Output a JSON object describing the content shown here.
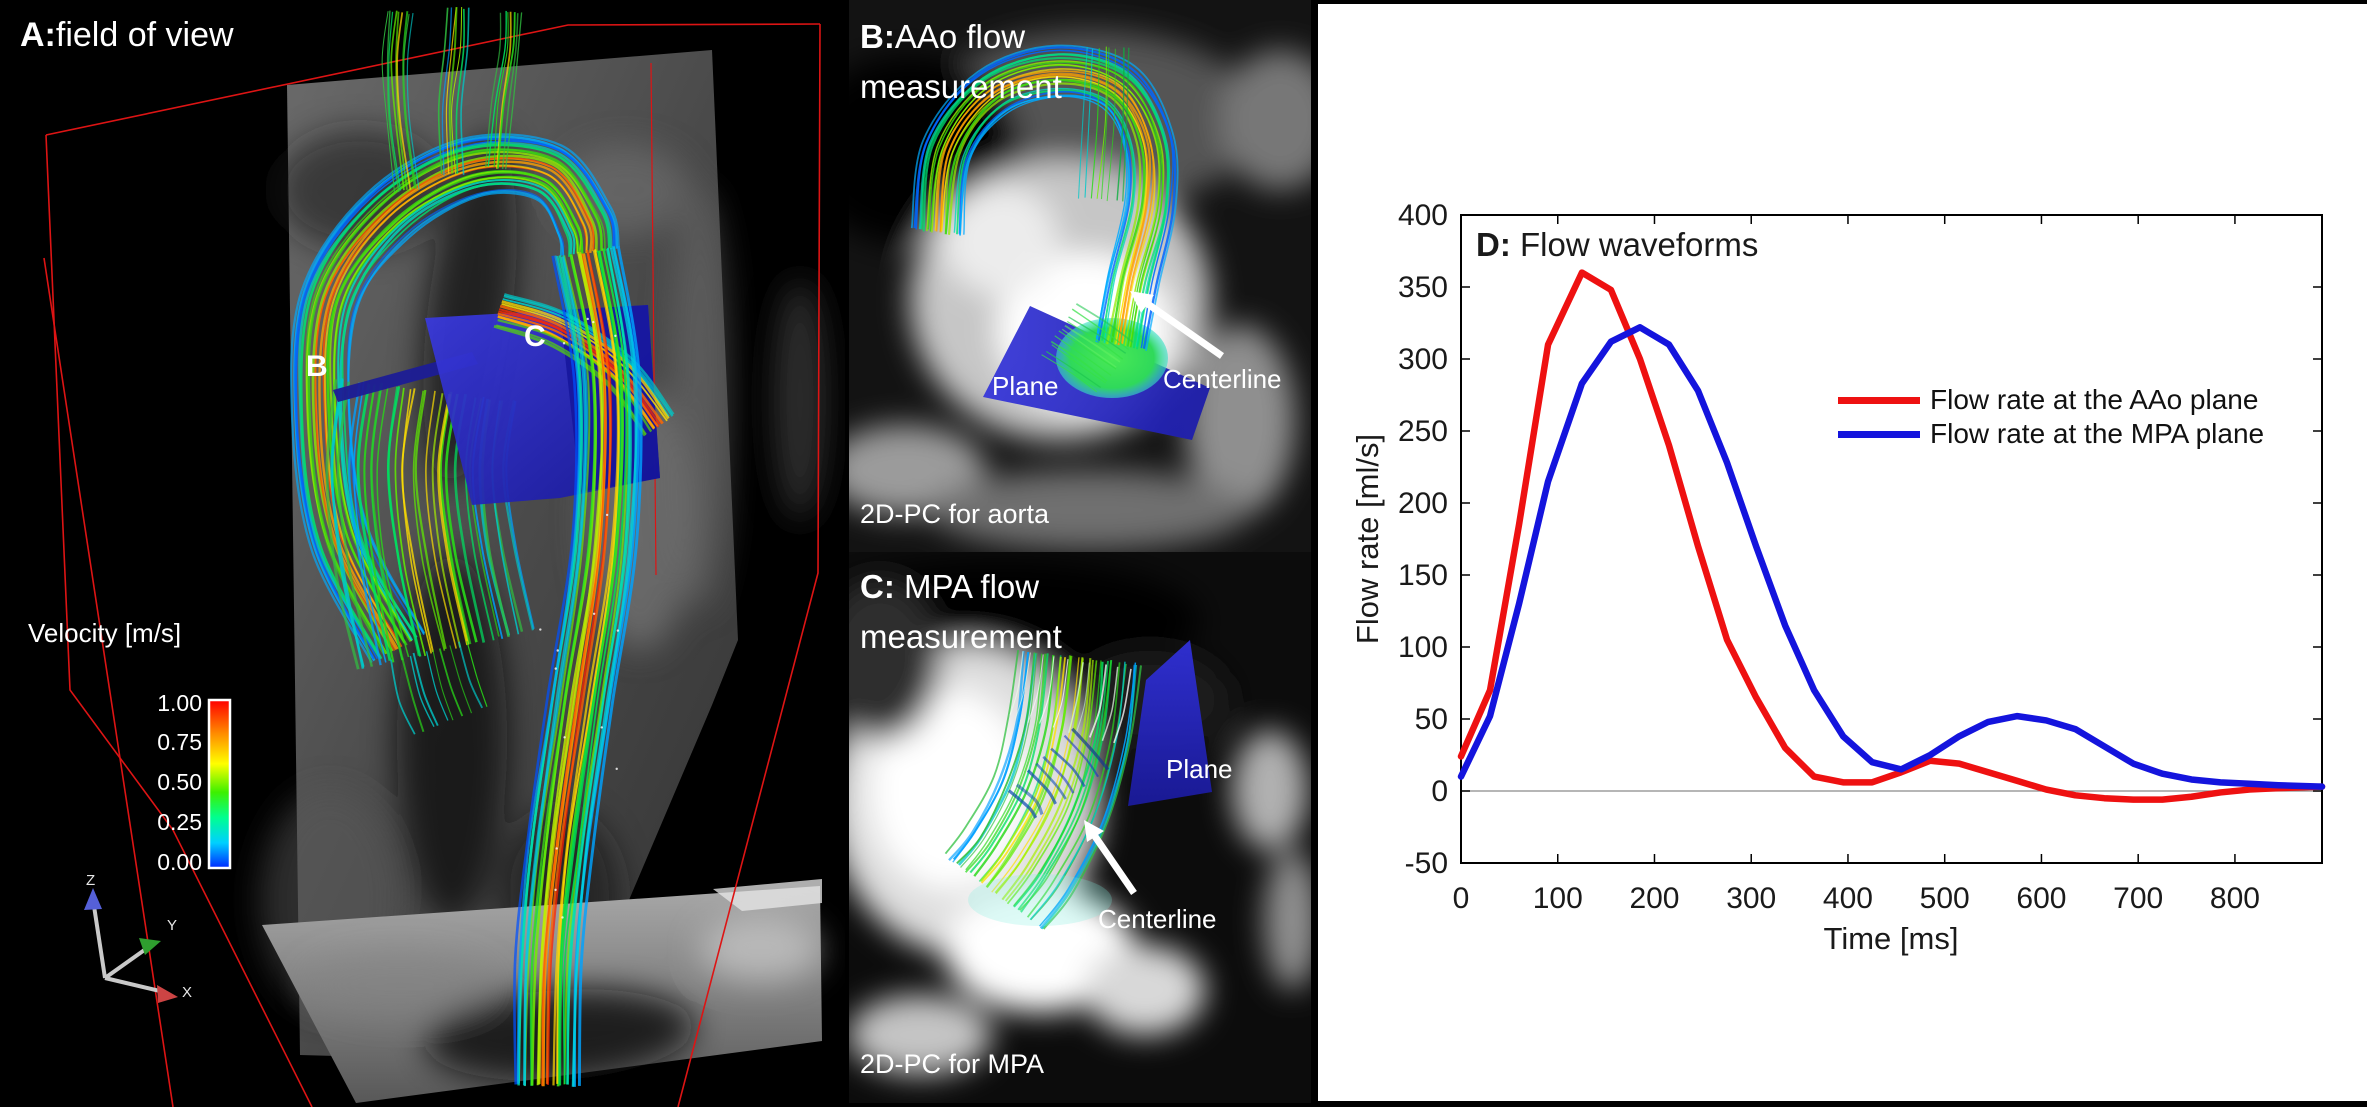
{
  "figure": {
    "panel_a": {
      "label": "A:",
      "title": "field of view",
      "marker_b": "B",
      "marker_c": "C",
      "colorbar": {
        "title": "Velocity [m/s]",
        "ticks": [
          "1.00",
          "0.75",
          "0.50",
          "0.25",
          "0.00"
        ]
      },
      "gizmo": {
        "x": "X",
        "y": "Y",
        "z": "Z"
      }
    },
    "panel_b": {
      "label": "B:",
      "title_line1": "AAo flow",
      "title_line2": "measurement",
      "plane": "Plane",
      "centerline": "Centerline",
      "caption": "2D-PC for aorta"
    },
    "panel_c": {
      "label": "C:",
      "title_line1": "MPA flow",
      "title_line2": "measurement",
      "plane": "Plane",
      "centerline": "Centerline",
      "caption": "2D-PC for MPA"
    }
  },
  "chart_data": {
    "type": "line",
    "title_label": "D:",
    "title": " Flow waveforms",
    "xlabel": "Time [ms]",
    "ylabel": "Flow rate [ml/s]",
    "xlim": [
      0,
      890
    ],
    "ylim": [
      -50,
      400
    ],
    "x_ticks": [
      0,
      100,
      200,
      300,
      400,
      500,
      600,
      700,
      800
    ],
    "y_ticks": [
      -50,
      0,
      50,
      100,
      150,
      200,
      250,
      300,
      350,
      400
    ],
    "grid": false,
    "zero_line": true,
    "legend_position": "middle-right",
    "x": [
      0,
      30,
      60,
      90,
      125,
      155,
      185,
      215,
      245,
      275,
      305,
      335,
      365,
      395,
      425,
      455,
      485,
      515,
      545,
      575,
      605,
      635,
      665,
      695,
      725,
      755,
      785,
      815,
      845,
      890
    ],
    "series": [
      {
        "name": "Flow rate at the AAo plane",
        "color": "#ee1111",
        "values": [
          24,
          70,
          185,
          310,
          360,
          348,
          300,
          240,
          170,
          105,
          65,
          30,
          10,
          6,
          6,
          13,
          21,
          19,
          13,
          7,
          1,
          -3,
          -5,
          -6,
          -6,
          -4,
          -1,
          1,
          2,
          3
        ]
      },
      {
        "name": "Flow rate at the MPA plane",
        "color": "#1414dd",
        "values": [
          10,
          52,
          130,
          215,
          283,
          312,
          322,
          310,
          278,
          228,
          170,
          115,
          70,
          38,
          20,
          15,
          25,
          38,
          48,
          52,
          49,
          43,
          31,
          19,
          12,
          8,
          6,
          5,
          4,
          3
        ]
      }
    ]
  },
  "colors": {
    "background": "#000000",
    "panel_d_background": "#ffffff",
    "fov_wireframe_red": "#dd1414",
    "measurement_plane_blue": "#2a2ac8",
    "text_light": "#ffffff",
    "text_dark": "#1a1a1a"
  }
}
